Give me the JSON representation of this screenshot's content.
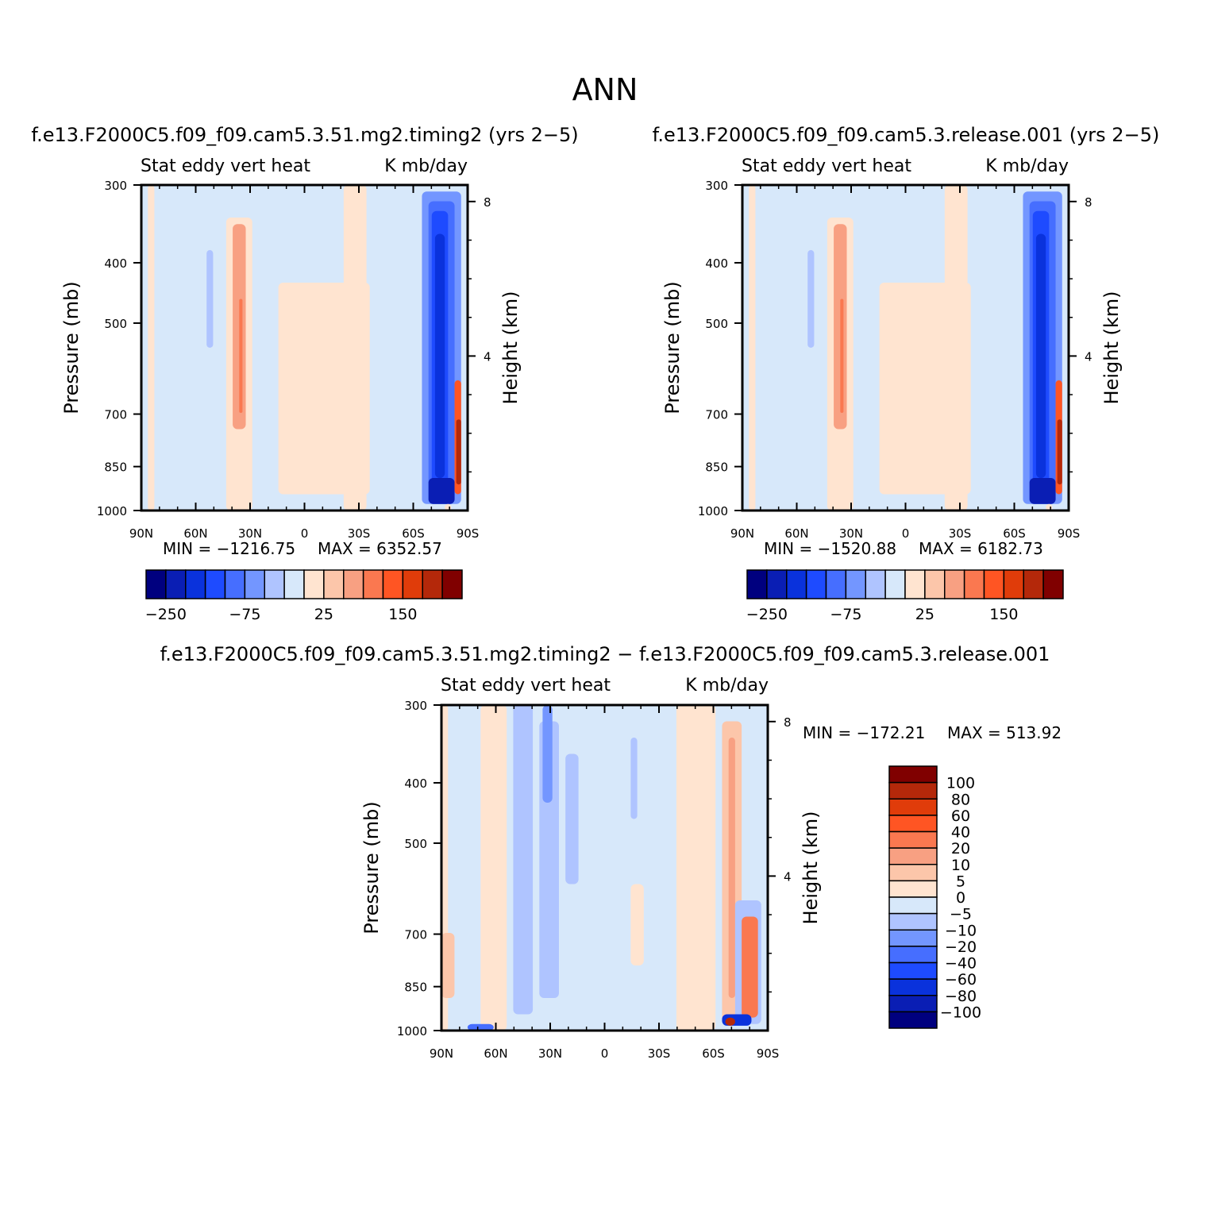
{
  "figure": {
    "title": "ANN",
    "x_ticks": [
      "90N",
      "60N",
      "30N",
      "0",
      "30S",
      "60S",
      "90S"
    ],
    "y_ticks": [
      "300",
      "400",
      "500",
      "700",
      "850",
      "1000"
    ],
    "y_tick_values": [
      300,
      400,
      500,
      700,
      850,
      1000
    ],
    "height_ticks": [
      "8",
      "4"
    ],
    "height_tick_values": [
      8,
      4
    ],
    "left_axis_label": "Pressure (mb)",
    "right_axis_label": "Height (km)",
    "panel_header_left": "Stat eddy vert heat",
    "panel_header_right": "K mb/day"
  },
  "panels": [
    {
      "name": "f.e13.F2000C5.f09_f09.cam5.3.51.mg2.timing2 (yrs 2−5)",
      "min_label": "MIN = −1216.75",
      "max_label": "MAX = 6352.57",
      "colorbar_ticks": [
        "−250",
        "−75",
        "25",
        "150"
      ]
    },
    {
      "name": "f.e13.F2000C5.f09_f09.cam5.3.release.001 (yrs 2−5)",
      "min_label": "MIN = −1520.88",
      "max_label": "MAX = 6182.73",
      "colorbar_ticks": [
        "−250",
        "−75",
        "25",
        "150"
      ]
    },
    {
      "name": "f.e13.F2000C5.f09_f09.cam5.3.51.mg2.timing2 − f.e13.F2000C5.f09_f09.cam5.3.release.001",
      "min_label": "MIN = −172.21",
      "max_label": "MAX = 513.92",
      "colorbar_ticks": [
        "100",
        "80",
        "60",
        "40",
        "20",
        "10",
        "5",
        "0",
        "−5",
        "−10",
        "−20",
        "−40",
        "−60",
        "−80",
        "−100"
      ]
    }
  ],
  "chart_data": [
    {
      "type": "heatmap",
      "title": "f.e13.F2000C5.f09_f09.cam5.3.51.mg2.timing2 (yrs 2−5)",
      "subtitle": "Stat eddy vert heat",
      "units": "K mb/day",
      "xlabel": "",
      "ylabel": "Pressure (mb)",
      "y2label": "Height (km)",
      "x_range": [
        "90N",
        "90S"
      ],
      "ylim": [
        1000,
        300
      ],
      "y_scale": "log",
      "min": -1216.75,
      "max": 6352.57,
      "contour_levels_labeled": [
        -250,
        -75,
        25,
        150
      ],
      "colors": [
        "#00007f",
        "#0a1eb4",
        "#0a32dc",
        "#1e4bff",
        "#466eff",
        "#7396ff",
        "#afc4ff",
        "#d7e8fa",
        "#ffe4d0",
        "#fcc6aa",
        "#f8a082",
        "#fa7850",
        "#ff5523",
        "#e03c0a",
        "#b4280a",
        "#800000"
      ]
    },
    {
      "type": "heatmap",
      "title": "f.e13.F2000C5.f09_f09.cam5.3.release.001 (yrs 2−5)",
      "subtitle": "Stat eddy vert heat",
      "units": "K mb/day",
      "xlabel": "",
      "ylabel": "Pressure (mb)",
      "y2label": "Height (km)",
      "x_range": [
        "90N",
        "90S"
      ],
      "ylim": [
        1000,
        300
      ],
      "y_scale": "log",
      "min": -1520.88,
      "max": 6182.73,
      "contour_levels_labeled": [
        -250,
        -75,
        25,
        150
      ],
      "colors": [
        "#00007f",
        "#0a1eb4",
        "#0a32dc",
        "#1e4bff",
        "#466eff",
        "#7396ff",
        "#afc4ff",
        "#d7e8fa",
        "#ffe4d0",
        "#fcc6aa",
        "#f8a082",
        "#fa7850",
        "#ff5523",
        "#e03c0a",
        "#b4280a",
        "#800000"
      ]
    },
    {
      "type": "heatmap",
      "title": "f.e13.F2000C5.f09_f09.cam5.3.51.mg2.timing2 − f.e13.F2000C5.f09_f09.cam5.3.release.001",
      "subtitle": "Stat eddy vert heat",
      "units": "K mb/day",
      "xlabel": "",
      "ylabel": "Pressure (mb)",
      "y2label": "Height (km)",
      "x_range": [
        "90N",
        "90S"
      ],
      "ylim": [
        1000,
        300
      ],
      "y_scale": "log",
      "min": -172.21,
      "max": 513.92,
      "contour_levels": [
        -100,
        -80,
        -60,
        -40,
        -20,
        -10,
        -5,
        0,
        5,
        10,
        20,
        40,
        60,
        80,
        100
      ],
      "colors": [
        "#00007f",
        "#0a1eb4",
        "#0a32dc",
        "#1e4bff",
        "#466eff",
        "#7396ff",
        "#afc4ff",
        "#d7e8fa",
        "#ffe4d0",
        "#fcc6aa",
        "#f8a082",
        "#fa7850",
        "#ff5523",
        "#e03c0a",
        "#b4280a",
        "#800000"
      ]
    }
  ]
}
